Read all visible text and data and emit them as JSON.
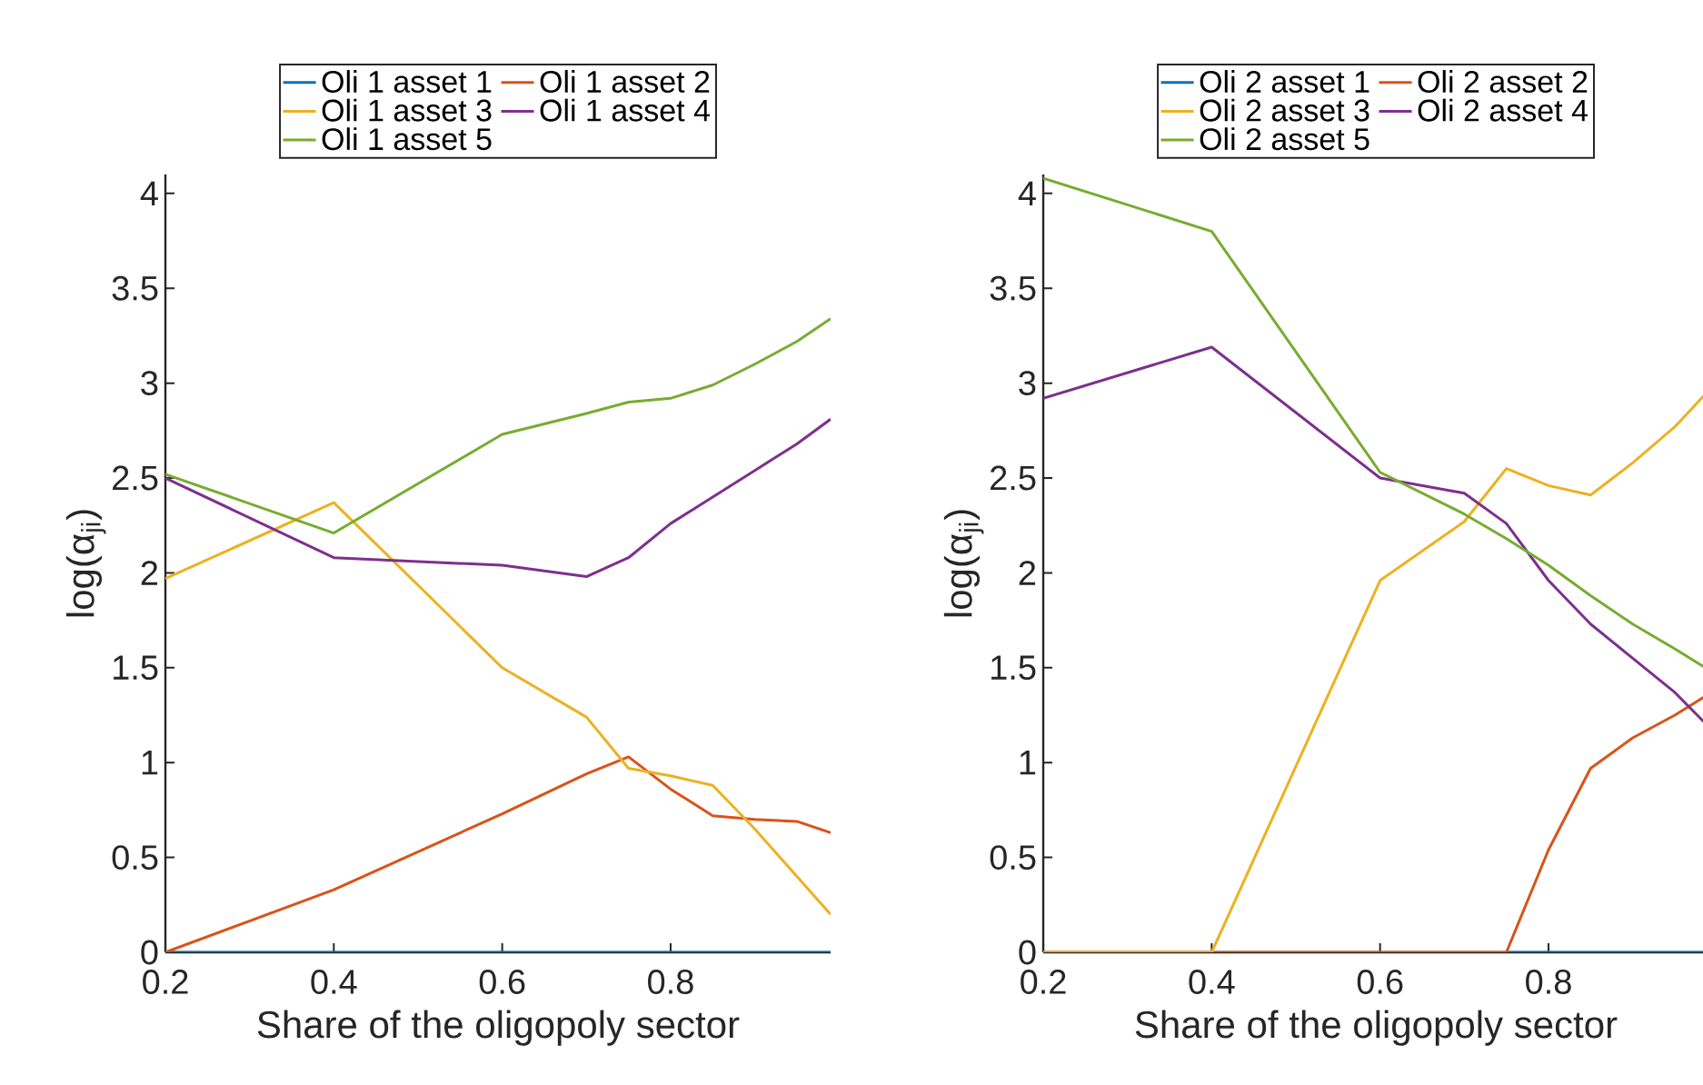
{
  "chart_data": [
    {
      "type": "line",
      "xlabel": "Share of the oligopoly sector",
      "ylabel": "log(α$_{ji}$)",
      "x": [
        0.2,
        0.4,
        0.6,
        0.7,
        0.75,
        0.8,
        0.85,
        0.9,
        0.95,
        0.99
      ],
      "series": [
        {
          "name": "Oli 1 asset 1",
          "color": "#0072bd",
          "values": [
            0,
            0,
            0,
            0,
            0,
            0,
            0,
            0,
            0,
            0
          ]
        },
        {
          "name": "Oli 1 asset 2",
          "color": "#d95319",
          "values": [
            0,
            0.33,
            0.73,
            0.94,
            1.03,
            0.86,
            0.72,
            0.7,
            0.69,
            0.63
          ]
        },
        {
          "name": "Oli 1 asset 3",
          "color": "#edb120",
          "values": [
            1.97,
            2.37,
            1.5,
            1.24,
            0.97,
            0.93,
            0.88,
            0.65,
            0.4,
            0.2
          ]
        },
        {
          "name": "Oli 1 asset 4",
          "color": "#7e2f8e",
          "values": [
            2.5,
            2.08,
            2.04,
            1.98,
            2.08,
            2.26,
            2.4,
            2.54,
            2.68,
            2.81
          ]
        },
        {
          "name": "Oli 1 asset 5",
          "color": "#77ac30",
          "values": [
            2.52,
            2.21,
            2.73,
            2.84,
            2.9,
            2.92,
            2.99,
            3.1,
            3.22,
            3.34
          ]
        }
      ],
      "xlim": [
        0.2,
        0.99
      ],
      "xticks": [
        0.2,
        0.4,
        0.6,
        0.8
      ],
      "ylim": [
        0,
        4.1
      ],
      "yticks": [
        0,
        0.5,
        1,
        1.5,
        2,
        2.5,
        3,
        3.5,
        4
      ],
      "legend": "top",
      "grid": false
    },
    {
      "type": "line",
      "xlabel": "Share of the oligopoly sector",
      "ylabel": "log(α$_{ji}$)",
      "x": [
        0.2,
        0.4,
        0.6,
        0.7,
        0.75,
        0.8,
        0.85,
        0.9,
        0.95,
        0.99
      ],
      "series": [
        {
          "name": "Oli 2 asset 1",
          "color": "#0072bd",
          "values": [
            null,
            null,
            null,
            null,
            0,
            0,
            0,
            0,
            0,
            0
          ]
        },
        {
          "name": "Oli 2 asset 2",
          "color": "#d95319",
          "values": [
            0,
            0,
            0,
            0,
            0,
            0.54,
            0.97,
            1.13,
            1.25,
            1.36
          ]
        },
        {
          "name": "Oli 2 asset 3",
          "color": "#edb120",
          "values": [
            0,
            0,
            1.96,
            2.27,
            2.55,
            2.46,
            2.41,
            2.58,
            2.77,
            2.96
          ]
        },
        {
          "name": "Oli 2 asset 4",
          "color": "#7e2f8e",
          "values": [
            2.92,
            3.19,
            2.5,
            2.42,
            2.26,
            1.96,
            1.73,
            1.55,
            1.37,
            1.19
          ]
        },
        {
          "name": "Oli 2 asset 5",
          "color": "#77ac30",
          "values": [
            4.08,
            3.8,
            2.53,
            2.31,
            2.18,
            2.04,
            1.88,
            1.73,
            1.6,
            1.49
          ]
        }
      ],
      "xlim": [
        0.2,
        0.99
      ],
      "xticks": [
        0.2,
        0.4,
        0.6,
        0.8
      ],
      "ylim": [
        0,
        4.1
      ],
      "yticks": [
        0,
        0.5,
        1,
        1.5,
        2,
        2.5,
        3,
        3.5,
        4
      ],
      "legend": "top",
      "grid": false
    }
  ]
}
